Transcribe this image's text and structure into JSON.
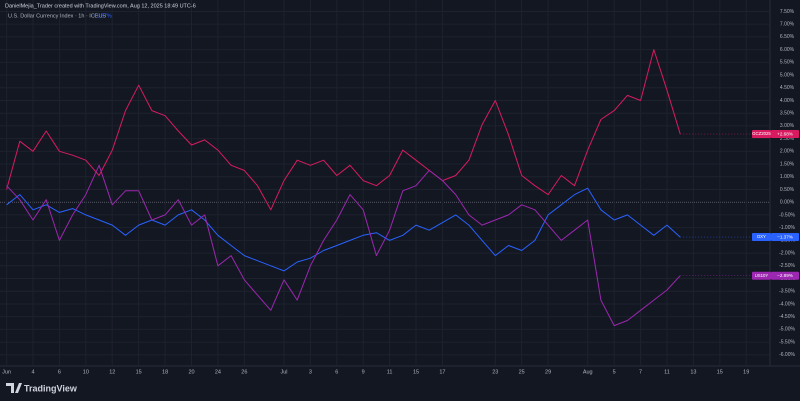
{
  "chart_data": {
    "type": "line",
    "title": "DanielMejia_Trader created with TradingView.com, Aug 12, 2025 18:49 UTC-6",
    "subtitle": "U.S. Dollar Currency Index · 1h · ICEUS",
    "subtitle_change": "−1.37%",
    "watermark": "TradingView",
    "x": [
      0,
      1,
      2,
      3,
      4,
      5,
      6,
      7,
      8,
      9,
      10,
      11,
      12,
      13,
      14,
      15,
      16,
      17,
      18,
      19,
      20,
      21,
      22,
      23,
      24,
      25,
      26,
      27,
      28,
      29,
      30,
      31,
      32,
      33,
      34,
      35,
      36,
      37,
      38,
      39,
      40,
      41,
      42,
      43,
      44,
      45,
      46,
      47,
      48,
      49,
      50,
      51
    ],
    "xlim": [
      -0.5,
      57.8
    ],
    "xticks": [
      {
        "value": 0,
        "label": "Jun"
      },
      {
        "value": 2,
        "label": "4"
      },
      {
        "value": 4,
        "label": "6"
      },
      {
        "value": 6,
        "label": "10"
      },
      {
        "value": 8,
        "label": "12"
      },
      {
        "value": 10,
        "label": "15"
      },
      {
        "value": 12,
        "label": "18"
      },
      {
        "value": 14,
        "label": "20"
      },
      {
        "value": 16,
        "label": "24"
      },
      {
        "value": 18,
        "label": "26"
      },
      {
        "value": 21,
        "label": "Jul"
      },
      {
        "value": 23,
        "label": "3"
      },
      {
        "value": 25,
        "label": "6"
      },
      {
        "value": 27,
        "label": "9"
      },
      {
        "value": 29,
        "label": "11"
      },
      {
        "value": 31,
        "label": "15"
      },
      {
        "value": 33,
        "label": "17"
      },
      {
        "value": 37,
        "label": "23"
      },
      {
        "value": 39,
        "label": "25"
      },
      {
        "value": 41,
        "label": "29"
      },
      {
        "value": 44,
        "label": "Aug"
      },
      {
        "value": 46,
        "label": "5"
      },
      {
        "value": 48,
        "label": "7"
      },
      {
        "value": 50,
        "label": "11"
      },
      {
        "value": 52,
        "label": "13"
      },
      {
        "value": 54,
        "label": "15"
      },
      {
        "value": 56,
        "label": "19"
      }
    ],
    "ylim": [
      -6.4,
      7.95
    ],
    "yticks": [
      {
        "value": 7.5,
        "label": "7.50%"
      },
      {
        "value": 7,
        "label": "7.00%"
      },
      {
        "value": 6.5,
        "label": "6.50%"
      },
      {
        "value": 6,
        "label": "6.00%"
      },
      {
        "value": 5.5,
        "label": "5.50%"
      },
      {
        "value": 5,
        "label": "5.00%"
      },
      {
        "value": 4.5,
        "label": "4.50%"
      },
      {
        "value": 4,
        "label": "4.00%"
      },
      {
        "value": 3.5,
        "label": "3.50%"
      },
      {
        "value": 3,
        "label": "3.00%"
      },
      {
        "value": 2.5,
        "label": "2.50%"
      },
      {
        "value": 2,
        "label": "2.00%"
      },
      {
        "value": 1.5,
        "label": "1.50%"
      },
      {
        "value": 1,
        "label": "1.00%"
      },
      {
        "value": 0.5,
        "label": "0.50%"
      },
      {
        "value": 0,
        "label": "0.00%"
      },
      {
        "value": -0.5,
        "label": "-0.50%"
      },
      {
        "value": -1,
        "label": "-1.00%"
      },
      {
        "value": -1.5,
        "label": "-1.50%"
      },
      {
        "value": -2,
        "label": "-2.00%"
      },
      {
        "value": -2.5,
        "label": "-2.50%"
      },
      {
        "value": -3,
        "label": "-3.00%"
      },
      {
        "value": -3.5,
        "label": "-3.50%"
      },
      {
        "value": -4,
        "label": "-4.00%"
      },
      {
        "value": -4.5,
        "label": "-4.50%"
      },
      {
        "value": -5,
        "label": "-5.00%"
      },
      {
        "value": -5.5,
        "label": "-5.50%"
      },
      {
        "value": -6,
        "label": "-6.00%"
      }
    ],
    "grid": true,
    "series": [
      {
        "name": "GCZ2025",
        "color": "#d81b60",
        "end_label": "+2.68%",
        "values": [
          0.5,
          2.4,
          2.0,
          2.8,
          2.0,
          1.85,
          1.65,
          1.05,
          2.05,
          3.6,
          4.6,
          3.6,
          3.4,
          2.8,
          2.25,
          2.45,
          2.05,
          1.45,
          1.25,
          0.65,
          -0.3,
          0.85,
          1.65,
          1.45,
          1.65,
          1.05,
          1.45,
          0.85,
          0.65,
          1.05,
          2.05,
          1.65,
          1.25,
          0.85,
          1.05,
          1.65,
          3.05,
          4.0,
          2.65,
          1.05,
          0.65,
          0.3,
          1.05,
          0.65,
          2.05,
          3.25,
          3.6,
          4.2,
          4.0,
          6.0,
          4.4,
          2.68
        ]
      },
      {
        "name": "DXY",
        "color": "#2962ff",
        "end_label": "−1.37%",
        "values": [
          -0.1,
          0.3,
          -0.3,
          -0.1,
          -0.4,
          -0.25,
          -0.5,
          -0.7,
          -0.9,
          -1.3,
          -0.9,
          -0.7,
          -0.9,
          -0.5,
          -0.3,
          -0.7,
          -1.3,
          -1.7,
          -2.1,
          -2.3,
          -2.5,
          -2.7,
          -2.35,
          -2.2,
          -1.9,
          -1.7,
          -1.5,
          -1.3,
          -1.2,
          -1.5,
          -1.3,
          -0.9,
          -1.1,
          -0.8,
          -0.5,
          -0.9,
          -1.5,
          -2.1,
          -1.7,
          -1.9,
          -1.5,
          -0.5,
          -0.1,
          0.3,
          0.55,
          -0.3,
          -0.7,
          -0.5,
          -0.9,
          -1.3,
          -0.9,
          -1.37
        ]
      },
      {
        "name": "US10Y",
        "color": "#9c27b0",
        "end_label": "−2.89%",
        "values": [
          0.65,
          0.1,
          -0.7,
          0.1,
          -1.5,
          -0.5,
          0.3,
          1.45,
          -0.1,
          0.45,
          0.45,
          -0.7,
          -0.5,
          0.1,
          -0.9,
          -0.5,
          -2.5,
          -2.1,
          -3.05,
          -3.65,
          -4.25,
          -3.05,
          -3.85,
          -2.5,
          -1.5,
          -0.7,
          0.3,
          -0.3,
          -2.1,
          -1.1,
          0.45,
          0.65,
          1.25,
          0.85,
          0.3,
          -0.5,
          -0.9,
          -0.7,
          -0.5,
          -0.1,
          -0.3,
          -0.9,
          -1.5,
          -1.1,
          -0.7,
          -3.85,
          -4.85,
          -4.65,
          -4.25,
          -3.85,
          -3.45,
          -2.89
        ]
      }
    ]
  }
}
